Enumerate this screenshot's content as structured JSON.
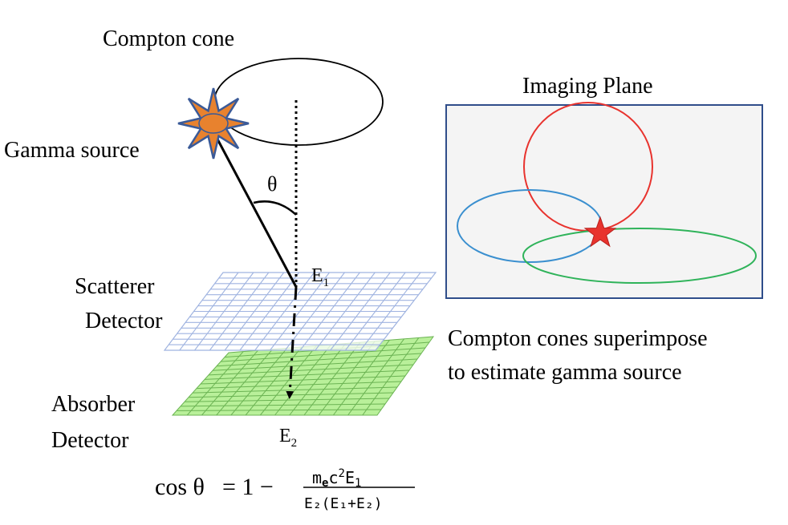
{
  "labels": {
    "compton_cone": "Compton cone",
    "gamma_source": "Gamma source",
    "theta": "θ",
    "e1": "E",
    "e1_sub": "1",
    "scatterer_line1": "Scatterer",
    "scatterer_line2": "Detector",
    "absorber_line1": "Absorber",
    "absorber_line2": "Detector",
    "e2": "E",
    "e2_sub": "2",
    "imaging_plane": "Imaging Plane",
    "caption_line1": "Compton cones superimpose",
    "caption_line2": "to estimate gamma source"
  },
  "formula": {
    "lhs": "cos θ",
    "equals": "= 1 −",
    "numerator": "m",
    "numerator_sub": "e",
    "numerator_mid": "c",
    "numerator_sup": "2",
    "numerator_end": "E",
    "numerator_end_sub": "1",
    "denominator": "E₂(E₁+E₂)"
  },
  "colors": {
    "source_fill": "#e8822e",
    "source_spikes": "#3a5a98",
    "scatterer_grid": "#9fb3e0",
    "absorber_fill": "#b9f09a",
    "absorber_grid": "#6bb353",
    "plane_border": "#2f4d8a",
    "plane_fill": "#f4f4f4",
    "circle_red": "#e8332e",
    "ellipse_blue": "#3a8fcf",
    "ellipse_green": "#2fb35a",
    "star": "#e8332e"
  }
}
